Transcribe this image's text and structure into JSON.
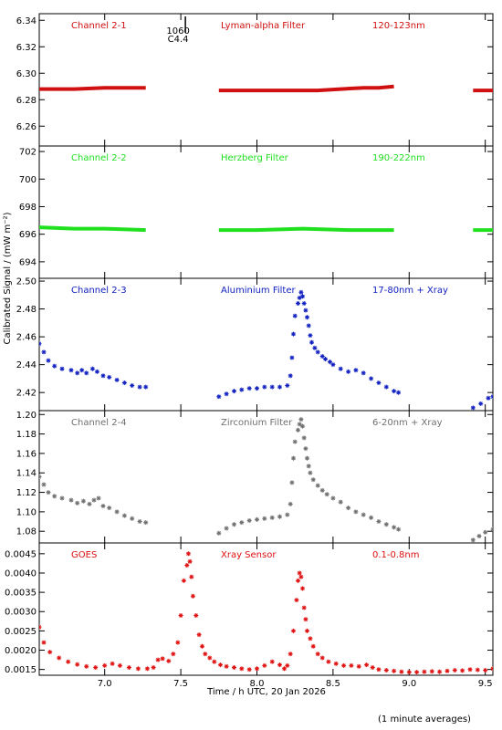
{
  "figure": {
    "ylabel": "Calibrated Signal / (mW m⁻²)",
    "xlabel": "Time / h UTC, 20 Jan 2026",
    "footnote": "(1 minute averages)",
    "marker_label_top": "1060",
    "marker_label_bottom": "C4.4",
    "marker_time_h": 7.53,
    "xlim": [
      6.57,
      9.55
    ],
    "xticks": [
      "7.0",
      "7.5",
      "8.0",
      "8.5",
      "9.0",
      "9.5"
    ]
  },
  "chart_data": [
    {
      "type": "scatter",
      "name_left": "Channel 2-1",
      "name_mid": "Lyman-alpha Filter",
      "name_right": "120-123nm",
      "color": "#d01010",
      "marker": "line",
      "ylim": [
        6.245,
        6.345
      ],
      "yticks": [
        "6.26",
        "6.28",
        "6.30",
        "6.32",
        "6.34"
      ],
      "segments": [
        [
          [
            6.57,
            6.288
          ],
          [
            6.8,
            6.288
          ],
          [
            7.0,
            6.289
          ],
          [
            7.15,
            6.289
          ],
          [
            7.27,
            6.289
          ]
        ],
        [
          [
            7.75,
            6.287
          ],
          [
            8.0,
            6.287
          ],
          [
            8.2,
            6.287
          ],
          [
            8.4,
            6.287
          ],
          [
            8.55,
            6.288
          ],
          [
            8.7,
            6.289
          ],
          [
            8.8,
            6.289
          ],
          [
            8.9,
            6.29
          ]
        ],
        [
          [
            9.42,
            6.287
          ],
          [
            9.55,
            6.287
          ]
        ]
      ]
    },
    {
      "type": "scatter",
      "name_left": "Channel 2-2",
      "name_mid": "Herzberg Filter",
      "name_right": "190-222nm",
      "color": "#20e020",
      "marker": "line",
      "ylim": [
        692.8,
        702.4
      ],
      "yticks": [
        "694",
        "696",
        "698",
        "700",
        "702"
      ],
      "segments": [
        [
          [
            6.57,
            696.5
          ],
          [
            6.8,
            696.4
          ],
          [
            7.0,
            696.4
          ],
          [
            7.27,
            696.3
          ]
        ],
        [
          [
            7.75,
            696.3
          ],
          [
            8.0,
            696.3
          ],
          [
            8.3,
            696.4
          ],
          [
            8.6,
            696.3
          ],
          [
            8.9,
            696.3
          ]
        ],
        [
          [
            9.42,
            696.3
          ],
          [
            9.55,
            696.3
          ]
        ]
      ]
    },
    {
      "type": "scatter",
      "name_left": "Channel 2-3",
      "name_mid": "Aluminium Filter",
      "name_right": "17-80nm + Xray",
      "color": "#1020c0",
      "marker": "star",
      "ylim": [
        2.407,
        2.502
      ],
      "yticks": [
        "2.42",
        "2.44",
        "2.46",
        "2.48",
        "2.50"
      ],
      "segments": [
        [
          [
            6.57,
            2.455
          ],
          [
            6.6,
            2.449
          ],
          [
            6.63,
            2.443
          ],
          [
            6.67,
            2.439
          ],
          [
            6.72,
            2.437
          ],
          [
            6.78,
            2.436
          ],
          [
            6.82,
            2.434
          ],
          [
            6.85,
            2.436
          ],
          [
            6.88,
            2.434
          ],
          [
            6.92,
            2.437
          ],
          [
            6.95,
            2.435
          ],
          [
            6.99,
            2.432
          ],
          [
            7.03,
            2.431
          ],
          [
            7.08,
            2.429
          ],
          [
            7.13,
            2.427
          ],
          [
            7.18,
            2.425
          ],
          [
            7.23,
            2.424
          ],
          [
            7.27,
            2.424
          ]
        ],
        [
          [
            7.75,
            2.417
          ],
          [
            7.8,
            2.419
          ],
          [
            7.85,
            2.421
          ],
          [
            7.9,
            2.422
          ],
          [
            7.95,
            2.423
          ],
          [
            8.0,
            2.423
          ],
          [
            8.05,
            2.424
          ],
          [
            8.1,
            2.424
          ],
          [
            8.15,
            2.424
          ],
          [
            8.2,
            2.425
          ],
          [
            8.22,
            2.432
          ],
          [
            8.23,
            2.445
          ],
          [
            8.24,
            2.462
          ],
          [
            8.25,
            2.475
          ],
          [
            8.27,
            2.484
          ],
          [
            8.28,
            2.488
          ],
          [
            8.29,
            2.492
          ],
          [
            8.3,
            2.489
          ],
          [
            8.31,
            2.484
          ],
          [
            8.32,
            2.479
          ],
          [
            8.33,
            2.474
          ],
          [
            8.34,
            2.468
          ],
          [
            8.35,
            2.461
          ],
          [
            8.36,
            2.456
          ],
          [
            8.38,
            2.452
          ],
          [
            8.4,
            2.449
          ],
          [
            8.43,
            2.446
          ],
          [
            8.45,
            2.444
          ],
          [
            8.48,
            2.442
          ],
          [
            8.5,
            2.44
          ],
          [
            8.55,
            2.437
          ],
          [
            8.6,
            2.435
          ],
          [
            8.65,
            2.436
          ],
          [
            8.7,
            2.434
          ],
          [
            8.75,
            2.43
          ],
          [
            8.8,
            2.427
          ],
          [
            8.85,
            2.424
          ],
          [
            8.9,
            2.421
          ],
          [
            8.93,
            2.42
          ]
        ],
        [
          [
            9.42,
            2.409
          ],
          [
            9.47,
            2.412
          ],
          [
            9.52,
            2.416
          ],
          [
            9.55,
            2.417
          ]
        ]
      ]
    },
    {
      "type": "scatter",
      "name_left": "Channel 2-4",
      "name_mid": "Zirconium Filter",
      "name_right": "6-20nm + Xray",
      "color": "#707070",
      "marker": "star",
      "ylim": [
        1.068,
        1.204
      ],
      "yticks": [
        "1.08",
        "1.10",
        "1.12",
        "1.14",
        "1.16",
        "1.18",
        "1.20"
      ],
      "segments": [
        [
          [
            6.57,
            1.136
          ],
          [
            6.6,
            1.128
          ],
          [
            6.63,
            1.12
          ],
          [
            6.67,
            1.116
          ],
          [
            6.72,
            1.114
          ],
          [
            6.78,
            1.112
          ],
          [
            6.82,
            1.109
          ],
          [
            6.86,
            1.111
          ],
          [
            6.9,
            1.108
          ],
          [
            6.93,
            1.112
          ],
          [
            6.96,
            1.114
          ],
          [
            6.99,
            1.106
          ],
          [
            7.03,
            1.104
          ],
          [
            7.08,
            1.1
          ],
          [
            7.13,
            1.096
          ],
          [
            7.18,
            1.093
          ],
          [
            7.23,
            1.09
          ],
          [
            7.27,
            1.089
          ]
        ],
        [
          [
            7.75,
            1.078
          ],
          [
            7.8,
            1.083
          ],
          [
            7.85,
            1.087
          ],
          [
            7.9,
            1.089
          ],
          [
            7.95,
            1.091
          ],
          [
            8.0,
            1.092
          ],
          [
            8.05,
            1.093
          ],
          [
            8.1,
            1.094
          ],
          [
            8.15,
            1.095
          ],
          [
            8.2,
            1.097
          ],
          [
            8.22,
            1.108
          ],
          [
            8.23,
            1.13
          ],
          [
            8.24,
            1.155
          ],
          [
            8.25,
            1.172
          ],
          [
            8.27,
            1.184
          ],
          [
            8.28,
            1.19
          ],
          [
            8.29,
            1.195
          ],
          [
            8.3,
            1.188
          ],
          [
            8.31,
            1.176
          ],
          [
            8.32,
            1.165
          ],
          [
            8.33,
            1.155
          ],
          [
            8.34,
            1.147
          ],
          [
            8.35,
            1.14
          ],
          [
            8.37,
            1.133
          ],
          [
            8.4,
            1.127
          ],
          [
            8.43,
            1.122
          ],
          [
            8.46,
            1.118
          ],
          [
            8.5,
            1.114
          ],
          [
            8.55,
            1.11
          ],
          [
            8.6,
            1.104
          ],
          [
            8.65,
            1.1
          ],
          [
            8.7,
            1.097
          ],
          [
            8.75,
            1.094
          ],
          [
            8.8,
            1.09
          ],
          [
            8.85,
            1.087
          ],
          [
            8.9,
            1.084
          ],
          [
            8.93,
            1.082
          ]
        ],
        [
          [
            9.42,
            1.071
          ],
          [
            9.46,
            1.075
          ],
          [
            9.5,
            1.079
          ],
          [
            9.55,
            1.082
          ]
        ]
      ]
    },
    {
      "type": "scatter",
      "name_left": "GOES",
      "name_mid": "Xray Sensor",
      "name_right": "0.1-0.8nm",
      "color": "#e01010",
      "marker": "star",
      "ylim": [
        0.00135,
        0.00478
      ],
      "yticks": [
        "0.0015",
        "0.0020",
        "0.0025",
        "0.0030",
        "0.0035",
        "0.0040",
        "0.0045"
      ],
      "segments": [
        [
          [
            6.57,
            0.0026
          ],
          [
            6.6,
            0.0022
          ],
          [
            6.64,
            0.00195
          ],
          [
            6.7,
            0.0018
          ],
          [
            6.76,
            0.0017
          ],
          [
            6.82,
            0.00163
          ],
          [
            6.88,
            0.00158
          ],
          [
            6.94,
            0.00155
          ],
          [
            7.0,
            0.0016
          ],
          [
            7.05,
            0.00165
          ],
          [
            7.1,
            0.0016
          ],
          [
            7.16,
            0.00155
          ],
          [
            7.22,
            0.00152
          ],
          [
            7.28,
            0.00152
          ],
          [
            7.32,
            0.00155
          ],
          [
            7.35,
            0.00175
          ],
          [
            7.38,
            0.00178
          ],
          [
            7.42,
            0.00172
          ],
          [
            7.45,
            0.0019
          ],
          [
            7.48,
            0.0022
          ],
          [
            7.5,
            0.0029
          ],
          [
            7.52,
            0.0038
          ],
          [
            7.54,
            0.0042
          ],
          [
            7.55,
            0.0045
          ],
          [
            7.56,
            0.0043
          ],
          [
            7.57,
            0.0039
          ],
          [
            7.58,
            0.0034
          ],
          [
            7.6,
            0.0029
          ],
          [
            7.62,
            0.0024
          ],
          [
            7.64,
            0.0021
          ],
          [
            7.66,
            0.0019
          ],
          [
            7.69,
            0.0018
          ],
          [
            7.72,
            0.0017
          ],
          [
            7.76,
            0.00162
          ],
          [
            7.8,
            0.00158
          ],
          [
            7.85,
            0.00155
          ],
          [
            7.9,
            0.00152
          ],
          [
            7.95,
            0.0015
          ],
          [
            8.0,
            0.00152
          ],
          [
            8.05,
            0.0016
          ],
          [
            8.1,
            0.0017
          ],
          [
            8.15,
            0.00162
          ],
          [
            8.18,
            0.00152
          ],
          [
            8.2,
            0.0016
          ],
          [
            8.22,
            0.0019
          ],
          [
            8.24,
            0.0025
          ],
          [
            8.26,
            0.0033
          ],
          [
            8.27,
            0.0038
          ],
          [
            8.28,
            0.004
          ],
          [
            8.29,
            0.0039
          ],
          [
            8.3,
            0.0036
          ],
          [
            8.31,
            0.0031
          ],
          [
            8.32,
            0.0028
          ],
          [
            8.33,
            0.0025
          ],
          [
            8.35,
            0.0023
          ],
          [
            8.37,
            0.0021
          ],
          [
            8.4,
            0.0019
          ],
          [
            8.43,
            0.0018
          ],
          [
            8.47,
            0.0017
          ],
          [
            8.52,
            0.00165
          ],
          [
            8.57,
            0.0016
          ],
          [
            8.62,
            0.0016
          ],
          [
            8.67,
            0.00158
          ],
          [
            8.72,
            0.00162
          ],
          [
            8.76,
            0.00155
          ],
          [
            8.8,
            0.0015
          ],
          [
            8.85,
            0.00148
          ],
          [
            8.9,
            0.00146
          ],
          [
            8.95,
            0.00144
          ],
          [
            9.0,
            0.00143
          ],
          [
            9.05,
            0.00143
          ],
          [
            9.1,
            0.00144
          ],
          [
            9.15,
            0.00145
          ],
          [
            9.2,
            0.00144
          ],
          [
            9.25,
            0.00146
          ],
          [
            9.3,
            0.00148
          ],
          [
            9.35,
            0.00147
          ],
          [
            9.4,
            0.0015
          ],
          [
            9.45,
            0.00149
          ],
          [
            9.5,
            0.00148
          ],
          [
            9.55,
            0.00152
          ]
        ]
      ]
    }
  ]
}
